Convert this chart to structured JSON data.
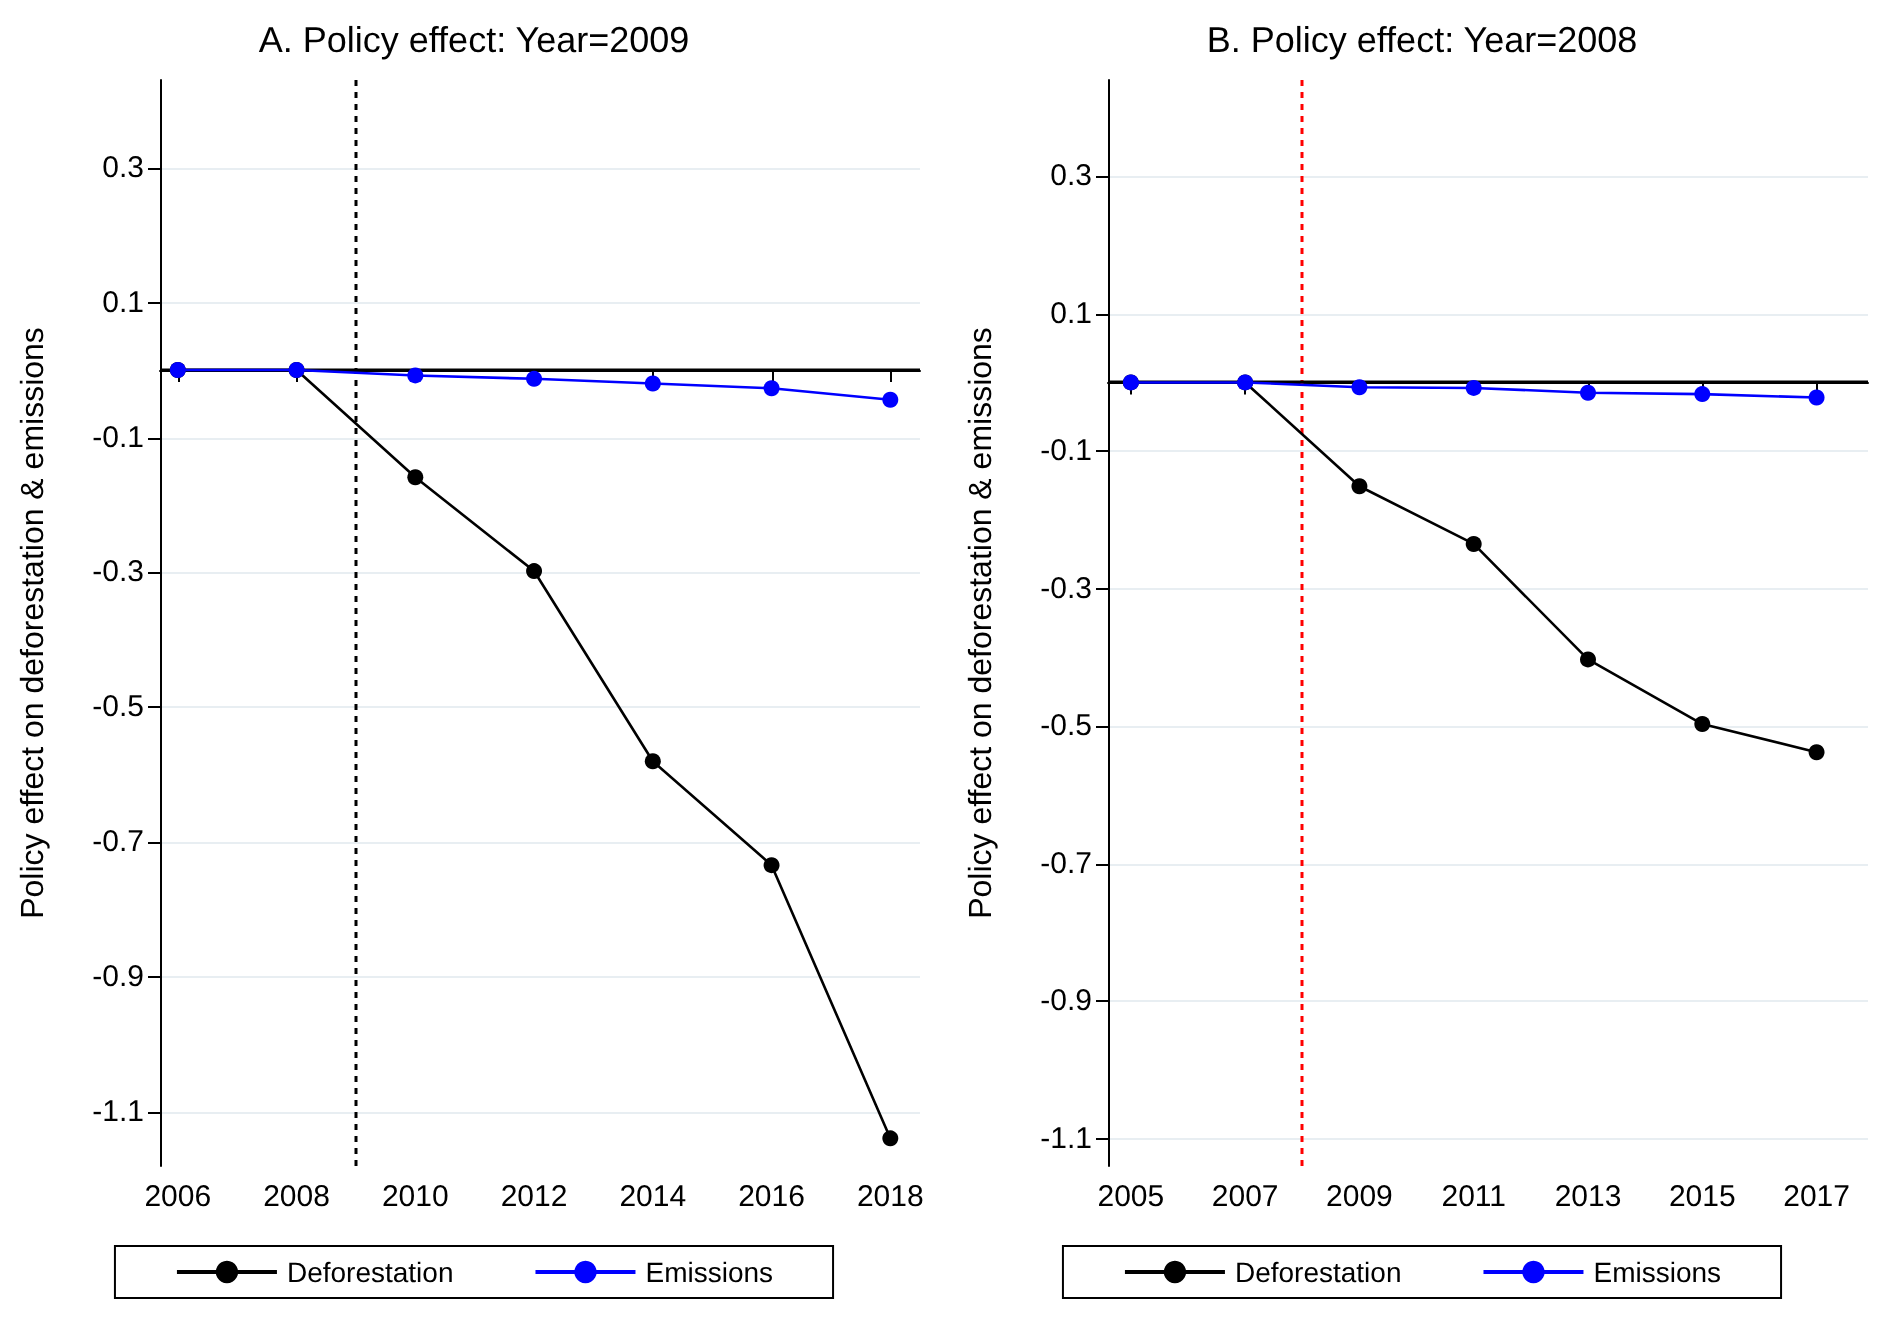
{
  "chart_data": [
    {
      "type": "line",
      "title": "A. Policy effect: Year=2009",
      "ylabel": "Policy effect on deforestation & emissions",
      "x": [
        2006,
        2008,
        2010,
        2012,
        2014,
        2016,
        2018
      ],
      "series": [
        {
          "name": "Deforestation",
          "color": "#000000",
          "values": [
            0,
            0,
            -0.159,
            -0.298,
            -0.58,
            -0.734,
            -1.139
          ]
        },
        {
          "name": "Emissions",
          "color": "#0000ff",
          "values": [
            0,
            0,
            -0.008,
            -0.013,
            -0.02,
            -0.027,
            -0.044
          ]
        }
      ],
      "xlim": [
        2005.7,
        2018.5
      ],
      "xticks": [
        2006,
        2008,
        2010,
        2012,
        2014,
        2016,
        2018
      ],
      "ylim": [
        -1.18,
        0.43
      ],
      "yticks": [
        -1.1,
        -0.9,
        -0.7,
        -0.5,
        -0.3,
        -0.1,
        0.1,
        0.3
      ],
      "ref_lines": [
        {
          "axis": "x",
          "value": 2009,
          "color": "#000000",
          "line_style": "dotted"
        },
        {
          "axis": "y",
          "value": 0,
          "color": "#000000",
          "line_style": "solid"
        }
      ],
      "grid": "y",
      "legend": "bottom",
      "marker": "circle",
      "line_style": "solid"
    },
    {
      "type": "line",
      "title": "B. Policy effect: Year=2008",
      "ylabel": "Policy effect on deforestation & emissions",
      "x": [
        2005,
        2007,
        2009,
        2011,
        2013,
        2015,
        2017
      ],
      "series": [
        {
          "name": "Deforestation",
          "color": "#000000",
          "values": [
            0,
            0,
            -0.151,
            -0.235,
            -0.403,
            -0.497,
            -0.538
          ]
        },
        {
          "name": "Emissions",
          "color": "#0000ff",
          "values": [
            0,
            0,
            -0.007,
            -0.008,
            -0.015,
            -0.017,
            -0.022
          ]
        }
      ],
      "xlim": [
        2004.6,
        2017.9
      ],
      "xticks": [
        2005,
        2007,
        2009,
        2011,
        2013,
        2015,
        2017
      ],
      "ylim": [
        -1.14,
        0.44
      ],
      "yticks": [
        -1.1,
        -0.9,
        -0.7,
        -0.5,
        -0.3,
        -0.1,
        0.1,
        0.3
      ],
      "ref_lines": [
        {
          "axis": "x",
          "value": 2008,
          "color": "#ff0000",
          "line_style": "dotted"
        },
        {
          "axis": "y",
          "value": 0,
          "color": "#000000",
          "line_style": "solid"
        }
      ],
      "grid": "y",
      "legend": "bottom",
      "marker": "circle",
      "line_style": "solid"
    }
  ]
}
